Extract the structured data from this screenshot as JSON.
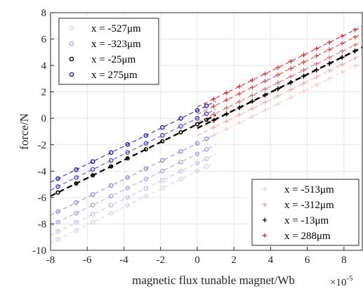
{
  "chart_data": {
    "type": "scatter",
    "xlabel": "magnetic flux tunable magnet/Wb",
    "ylabel": "force/N",
    "x_exponent_label": "×10",
    "x_exponent_power": "-5",
    "x_scale": 1e-05,
    "xlim": [
      -8e-05,
      9e-05
    ],
    "ylim": [
      -10,
      8
    ],
    "xticks": [
      -8e-05,
      -6e-05,
      -4e-05,
      -2e-05,
      0,
      2e-05,
      4e-05,
      6e-05,
      8e-05
    ],
    "xtick_labels": [
      "-8",
      "-6",
      "-4",
      "-2",
      "0",
      "2",
      "4",
      "6",
      "8"
    ],
    "yticks": [
      -10,
      -8,
      -6,
      -4,
      -2,
      0,
      2,
      4,
      6,
      8
    ],
    "ytick_labels": [
      "-10",
      "-8",
      "-6",
      "-4",
      "-2",
      "0",
      "2",
      "4",
      "6",
      "8"
    ],
    "grid": true,
    "fit_slope": 68000,
    "point_x_negative": [
      -7.6e-05,
      -6.6e-05,
      -5.7e-05,
      -4.7e-05,
      -3.8e-05,
      -2.8e-05,
      -1.9e-05,
      -9e-06,
      0,
      5e-06
    ],
    "point_x_positive": [
      9e-06,
      1.6e-05,
      2.3e-05,
      3e-05,
      3.7e-05,
      4.4e-05,
      5.1e-05,
      5.8e-05,
      6.5e-05,
      7.2e-05,
      7.9e-05,
      8.6e-05
    ],
    "series_negative_flux": [
      {
        "name": "x = -527μm",
        "marker": "o",
        "color": "#d5d5f5",
        "intercept": -4.0
      },
      {
        "name": "",
        "marker": "o",
        "color": "#c4c4f1",
        "intercept": -3.4
      },
      {
        "name": "x = -323μm",
        "marker": "o",
        "color": "#a8a8ea",
        "intercept": -2.7
      },
      {
        "name": "",
        "marker": "o",
        "color": "#8d8de3",
        "intercept": -1.9
      },
      {
        "name": "x = -25μm",
        "marker": "o",
        "color": "#000000",
        "intercept": -0.45,
        "emphasis": true
      },
      {
        "name": "",
        "marker": "o",
        "color": "#4a4ad4",
        "intercept": 0.0
      },
      {
        "name": "x = 275μm",
        "marker": "o",
        "color": "#1a1ac4",
        "intercept": 0.6
      }
    ],
    "series_positive_flux": [
      {
        "name": "x = -513μm",
        "marker": "+",
        "color": "#f9cccc",
        "intercept": -1.9
      },
      {
        "name": "",
        "marker": "+",
        "color": "#f4a8a8",
        "intercept": -1.3
      },
      {
        "name": "x = -312μm",
        "marker": "+",
        "color": "#ee8a8a",
        "intercept": -0.8
      },
      {
        "name": "",
        "marker": "+",
        "color": "#e86464",
        "intercept": -0.3
      },
      {
        "name": "x = -13μm",
        "marker": "+",
        "color": "#000000",
        "intercept": -0.75,
        "emphasis": true
      },
      {
        "name": "",
        "marker": "+",
        "color": "#e03a3a",
        "intercept": 0.3
      },
      {
        "name": "x = 288μm",
        "marker": "+",
        "color": "#dd1c1c",
        "intercept": 0.85
      }
    ],
    "legend_left": {
      "position": "top-left",
      "entries": [
        {
          "label": "x = -527μm",
          "marker": "o",
          "color": "#d5d5f5"
        },
        {
          "label": "x = -323μm",
          "marker": "o",
          "color": "#a8a8ea"
        },
        {
          "label": "x = -25μm",
          "marker": "o",
          "color": "#000000"
        },
        {
          "label": "x = 275μm",
          "marker": "o",
          "color": "#1a1ac4"
        }
      ]
    },
    "legend_right": {
      "position": "bottom-right",
      "entries": [
        {
          "label": "x = -513μm",
          "marker": "+",
          "color": "#f9cccc"
        },
        {
          "label": "x = -312μm",
          "marker": "+",
          "color": "#ee8a8a"
        },
        {
          "label": "x = -13μm",
          "marker": "+",
          "color": "#000000"
        },
        {
          "label": "x = 288μm",
          "marker": "+",
          "color": "#dd1c1c"
        }
      ]
    }
  }
}
